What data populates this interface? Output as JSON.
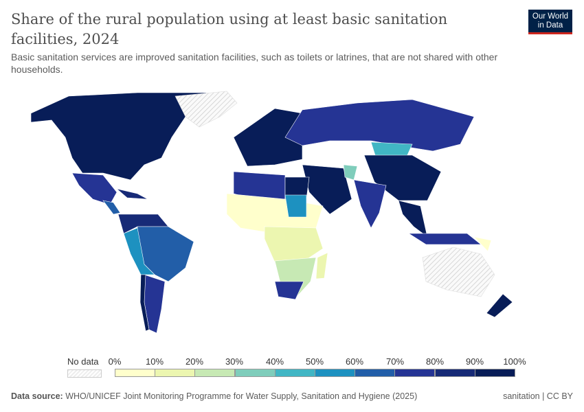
{
  "header": {
    "title": "Share of the rural population using at least basic sanitation facilities, 2024",
    "subtitle": "Basic sanitation services are improved sanitation facilities, such as toilets or latrines, that are not shared with other households.",
    "logo_line1": "Our World",
    "logo_line2": "in Data"
  },
  "legend": {
    "no_data_label": "No data",
    "ticks": [
      "0%",
      "10%",
      "20%",
      "30%",
      "40%",
      "50%",
      "60%",
      "70%",
      "80%",
      "90%",
      "100%"
    ],
    "colors": [
      "#ffffcc",
      "#ecf6b0",
      "#c7e9b4",
      "#7fcdbb",
      "#41b6c4",
      "#1d91c0",
      "#225ea8",
      "#253494",
      "#172a77",
      "#081d58"
    ]
  },
  "footer": {
    "source_label": "Data source:",
    "source_text": "WHO/UNICEF Joint Monitoring Programme for Water Supply, Sanitation and Hygiene (2025)",
    "license": "sanitation | CC BY"
  }
}
